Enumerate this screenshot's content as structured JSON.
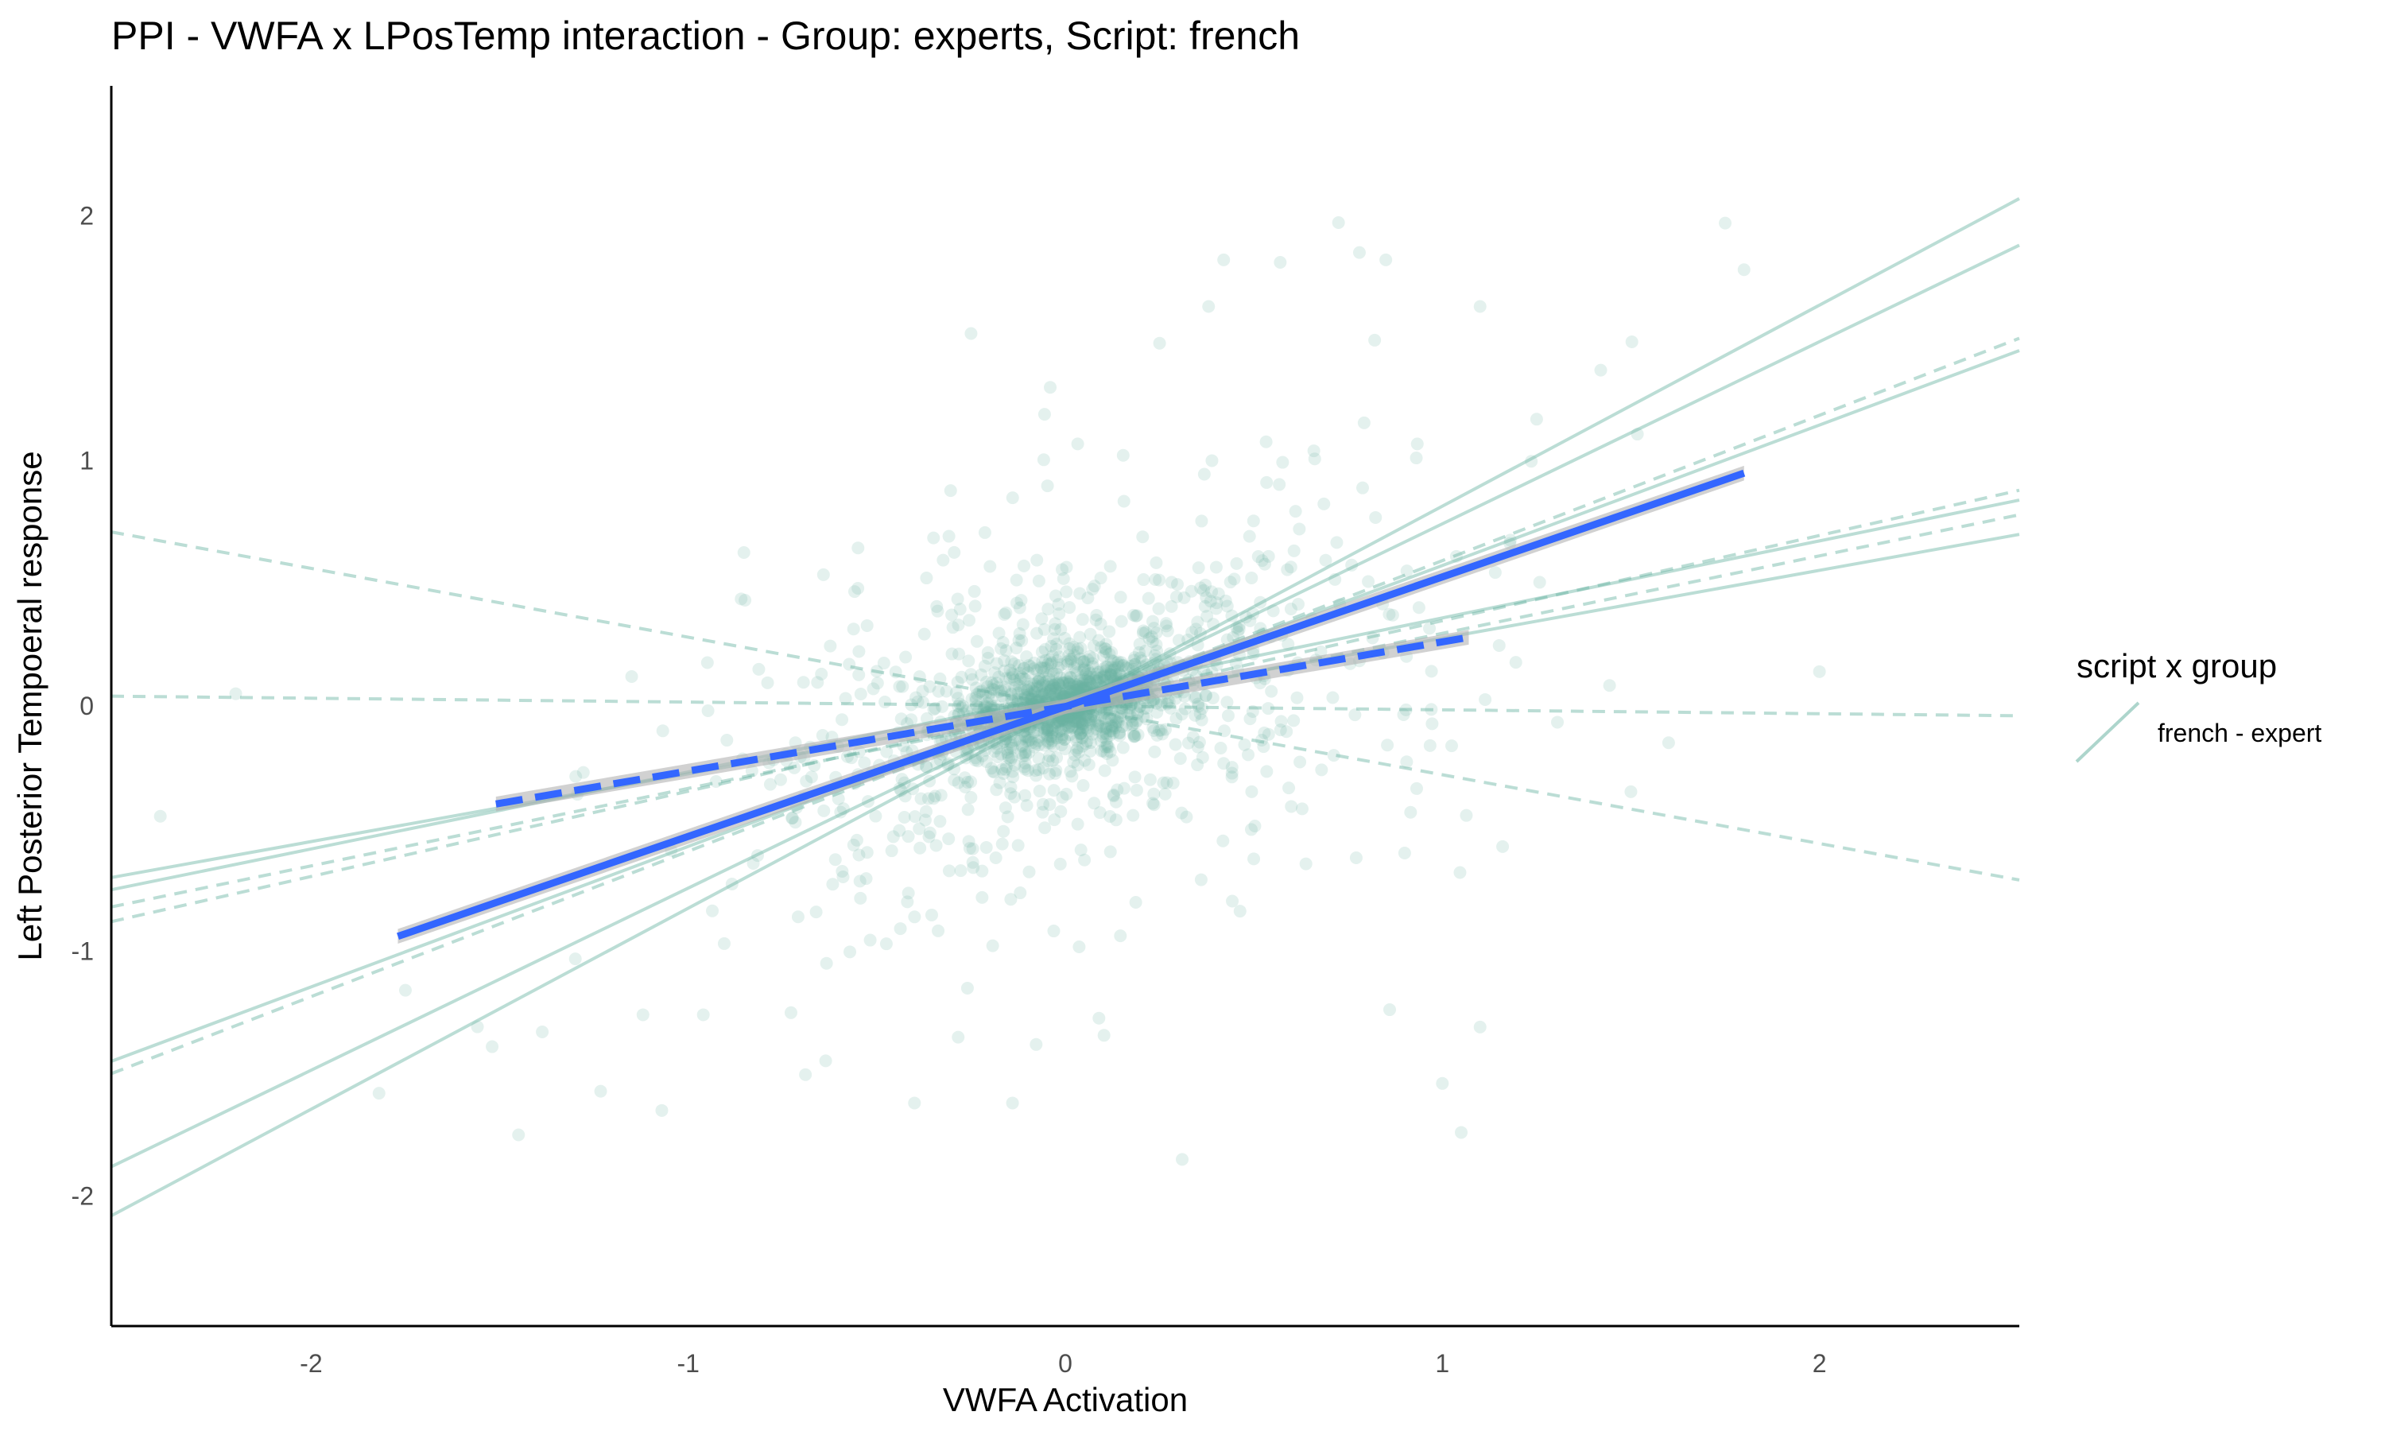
{
  "chart_data": {
    "type": "scatter",
    "title": "PPI - VWFA x LPosTemp interaction - Group: experts, Script: french",
    "xlabel": "VWFA Activation",
    "ylabel": "Left Posterior Tempoeral response",
    "xlim": [
      -2.53,
      2.53
    ],
    "ylim": [
      -2.53,
      2.53
    ],
    "x_ticks": [
      -2,
      -1,
      0,
      1,
      2
    ],
    "y_ticks": [
      -2,
      -1,
      0,
      1,
      2
    ],
    "grid": false,
    "legend": {
      "title": "script x group",
      "entries": [
        "french - expert"
      ],
      "position": "right"
    },
    "colors": {
      "points": "#69b3a2",
      "subject_lines": "#69b3a2",
      "fit": "#3366ff",
      "ribbon": "#b3b3b3"
    },
    "point_cloud": {
      "n_points": 1800,
      "center": [
        0,
        0
      ],
      "note_shape": "dense elliptical cluster"
    },
    "sample_points": [
      [
        1.75,
        1.97
      ],
      [
        1.8,
        1.78
      ],
      [
        0.42,
        1.82
      ],
      [
        0.57,
        1.81
      ],
      [
        0.85,
        1.82
      ],
      [
        0.78,
        1.85
      ],
      [
        0.38,
        1.63
      ],
      [
        1.1,
        1.63
      ],
      [
        0.25,
        1.48
      ],
      [
        -0.04,
        1.3
      ],
      [
        1.25,
        1.17
      ],
      [
        1.42,
        1.37
      ],
      [
        -1.82,
        -1.58
      ],
      [
        -1.45,
        -1.75
      ],
      [
        -0.4,
        -1.62
      ],
      [
        -0.14,
        -1.62
      ],
      [
        0.31,
        -1.85
      ],
      [
        1.05,
        -1.74
      ],
      [
        1.0,
        -1.54
      ],
      [
        1.1,
        -1.31
      ],
      [
        -1.12,
        -1.26
      ],
      [
        -0.96,
        -1.26
      ],
      [
        -1.75,
        -1.16
      ],
      [
        -1.52,
        -1.39
      ],
      [
        -2.4,
        -0.45
      ],
      [
        -2.2,
        0.05
      ],
      [
        -1.15,
        0.12
      ],
      [
        2.0,
        0.14
      ],
      [
        1.5,
        -0.35
      ],
      [
        1.6,
        -0.15
      ],
      [
        0.9,
        -0.6
      ],
      [
        -0.55,
        0.48
      ]
    ],
    "subject_lines": [
      {
        "style": "solid",
        "x": [
          -2.53,
          2.53
        ],
        "y": [
          -2.08,
          2.07
        ]
      },
      {
        "style": "solid",
        "x": [
          -2.53,
          2.53
        ],
        "y": [
          -1.88,
          1.88
        ]
      },
      {
        "style": "solid",
        "x": [
          -2.53,
          2.53
        ],
        "y": [
          -1.45,
          1.45
        ]
      },
      {
        "style": "solid",
        "x": [
          -2.53,
          2.53
        ],
        "y": [
          -0.75,
          0.84
        ]
      },
      {
        "style": "solid",
        "x": [
          -2.53,
          2.53
        ],
        "y": [
          -0.7,
          0.7
        ]
      },
      {
        "style": "dashed",
        "x": [
          -2.53,
          2.53
        ],
        "y": [
          -1.5,
          1.5
        ]
      },
      {
        "style": "dashed",
        "x": [
          -2.53,
          2.53
        ],
        "y": [
          -0.88,
          0.88
        ]
      },
      {
        "style": "dashed",
        "x": [
          -2.53,
          2.53
        ],
        "y": [
          -0.82,
          0.78
        ]
      },
      {
        "style": "dashed",
        "x": [
          -2.53,
          2.53
        ],
        "y": [
          0.71,
          -0.71
        ]
      },
      {
        "style": "dashed",
        "x": [
          -2.53,
          2.53
        ],
        "y": [
          0.04,
          -0.04
        ]
      }
    ],
    "fit_lines": [
      {
        "style": "solid",
        "x": [
          -1.77,
          1.8
        ],
        "y": [
          -0.94,
          0.95
        ],
        "ribbon_halfwidth": 0.03
      },
      {
        "style": "dashed",
        "x": [
          -1.51,
          1.07
        ],
        "y": [
          -0.4,
          0.28
        ],
        "ribbon_halfwidth": 0.03
      }
    ]
  }
}
